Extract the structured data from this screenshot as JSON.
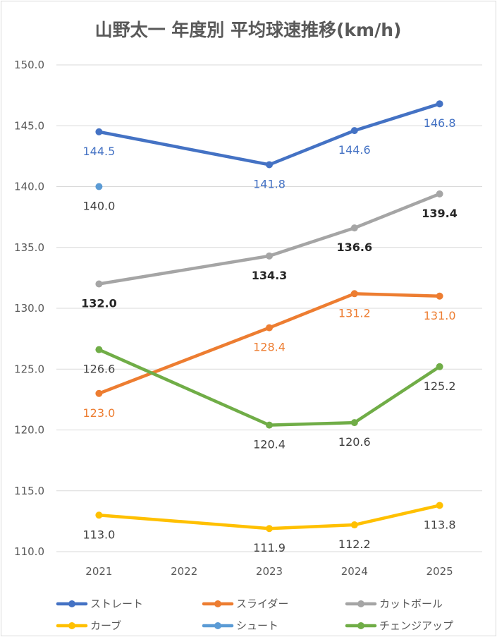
{
  "chart_data": {
    "type": "line",
    "title": "山野太一 年度別 平均球速推移(km/h)",
    "categories": [
      "2021",
      "2022",
      "2023",
      "2024",
      "2025"
    ],
    "ylim": [
      110,
      150
    ],
    "yticks": [
      "150.0",
      "145.0",
      "140.0",
      "135.0",
      "130.0",
      "125.0",
      "120.0",
      "115.0",
      "110.0"
    ],
    "grid": true,
    "legend_position": "bottom",
    "series": [
      {
        "name": "ストレート",
        "color": "#4472C4",
        "values": [
          144.5,
          null,
          141.8,
          144.6,
          146.8
        ],
        "labels": [
          "144.5",
          "",
          "141.8",
          "144.6",
          "146.8"
        ],
        "label_color": "#4472C4"
      },
      {
        "name": "スライダー",
        "color": "#ED7D31",
        "values": [
          123.0,
          null,
          128.4,
          131.2,
          131.0
        ],
        "labels": [
          "123.0",
          "",
          "128.4",
          "131.2",
          "131.0"
        ],
        "label_color": "#ED7D31"
      },
      {
        "name": "カットボール",
        "color": "#A5A5A5",
        "values": [
          132.0,
          null,
          134.3,
          136.6,
          139.4
        ],
        "labels": [
          "132.0",
          "",
          "134.3",
          "136.6",
          "139.4"
        ],
        "label_color": "#262626"
      },
      {
        "name": "カーブ",
        "color": "#FFC000",
        "values": [
          113.0,
          null,
          111.9,
          112.2,
          113.8
        ],
        "labels": [
          "113.0",
          "",
          "111.9",
          "112.2",
          "113.8"
        ],
        "label_color": "#404040"
      },
      {
        "name": "シュート",
        "color": "#5B9BD5",
        "values": [
          140.0,
          null,
          null,
          null,
          null
        ],
        "labels": [
          "140.0",
          "",
          "",
          "",
          ""
        ],
        "label_color": "#404040"
      },
      {
        "name": "チェンジアップ",
        "color": "#70AD47",
        "values": [
          126.6,
          null,
          120.4,
          120.6,
          125.2
        ],
        "labels": [
          "126.6",
          "",
          "120.4",
          "120.6",
          "125.2"
        ],
        "label_color": "#404040"
      }
    ]
  }
}
